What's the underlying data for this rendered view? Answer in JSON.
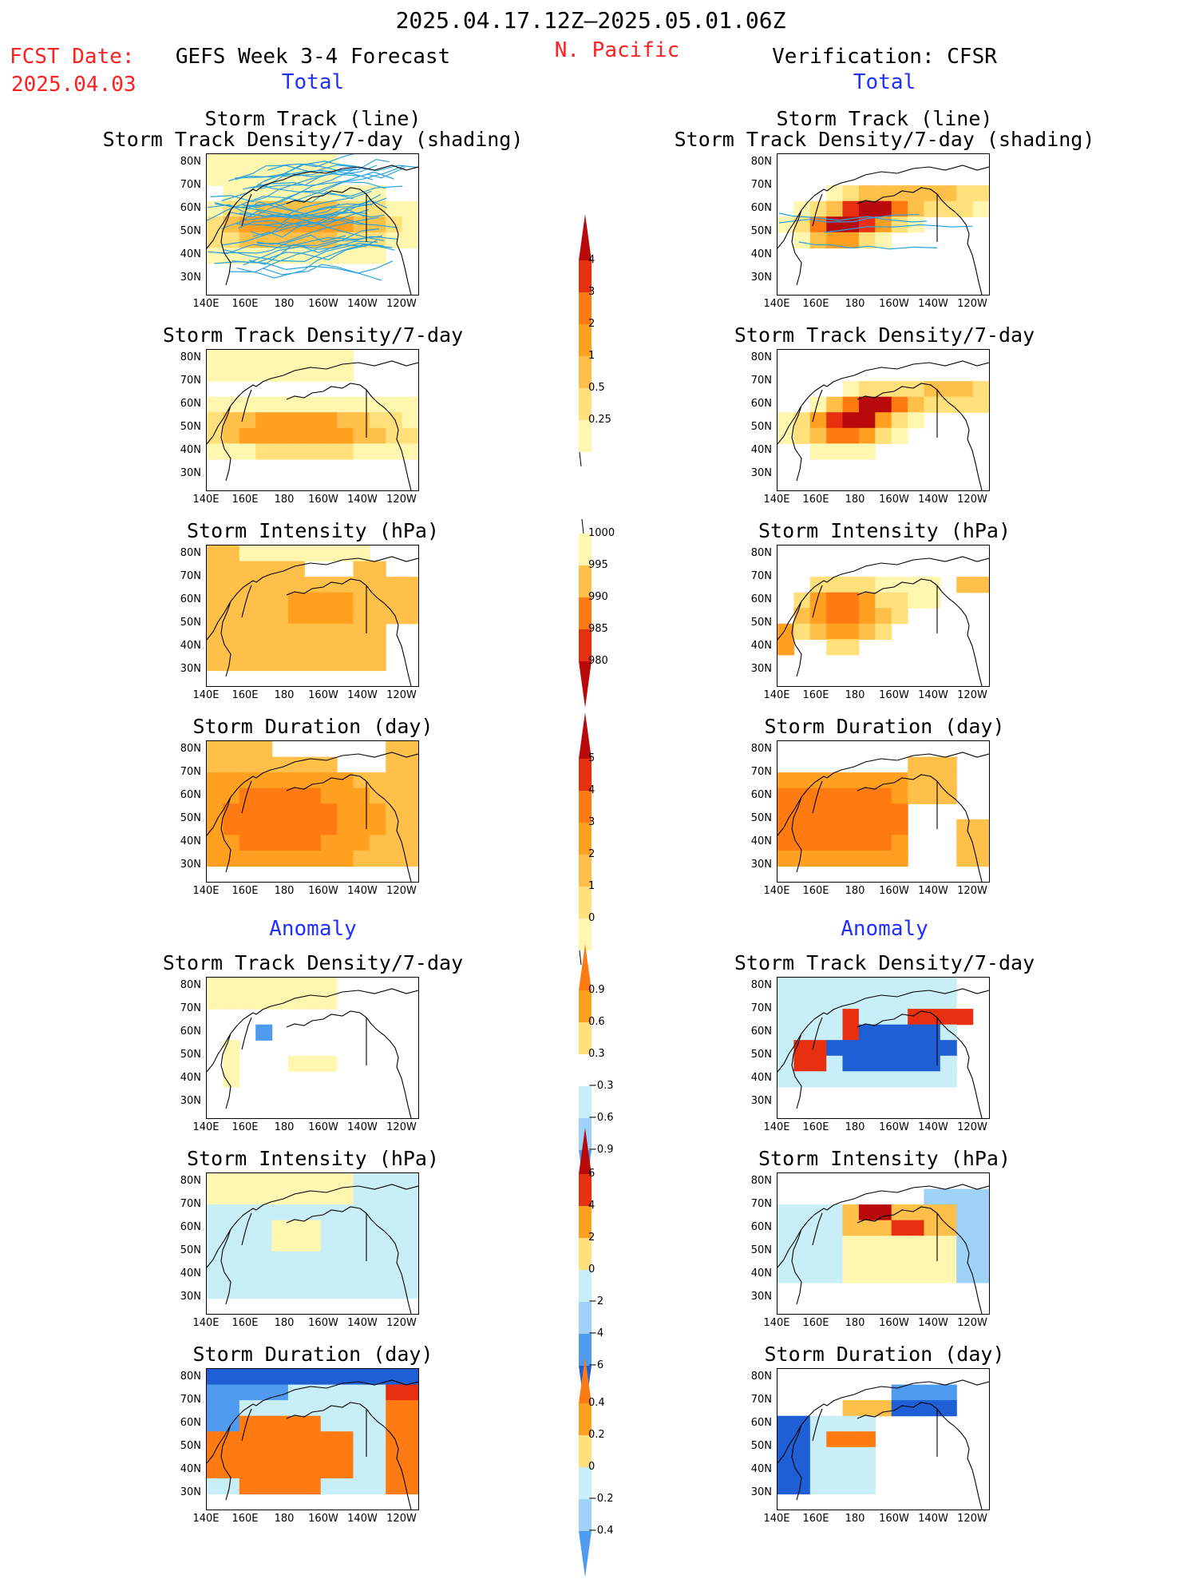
{
  "header": {
    "period": "2025.04.17.12Z–2025.05.01.06Z",
    "region": "N. Pacific",
    "fcst_date_label": "FCST Date:",
    "fcst_date_value": "2025.04.03",
    "left_title": "GEFS Week 3-4 Forecast",
    "right_title": "Verification: CFSR",
    "total_label": "Total",
    "anomaly_label": "Anomaly"
  },
  "axes": {
    "lat_ticks": [
      "80N",
      "70N",
      "60N",
      "50N",
      "40N",
      "30N"
    ],
    "lon_ticks": [
      "140E",
      "160E",
      "180",
      "160W",
      "140W",
      "120W"
    ]
  },
  "panel_titles": {
    "track_line": "Storm Track (line)",
    "track_shading": "Storm Track Density/7-day (shading)",
    "density": "Storm Track Density/7-day",
    "intensity": "Storm Intensity (hPa)",
    "duration": "Storm Duration (day)"
  },
  "colorbars": {
    "density_total": [
      "4",
      "3",
      "2",
      "1",
      "0.5",
      "0.25"
    ],
    "intensity_total": [
      "1000",
      "995",
      "990",
      "985",
      "980"
    ],
    "duration_total": [
      "5",
      "4",
      "3",
      "2",
      "1",
      "0"
    ],
    "density_anom": [
      "0.9",
      "0.6",
      "0.3",
      "−0.3",
      "−0.6",
      "−0.9"
    ],
    "intensity_anom": [
      "6",
      "4",
      "2",
      "0",
      "−2",
      "−4",
      "−6"
    ],
    "duration_anom": [
      "0.4",
      "0.2",
      "0",
      "−0.2",
      "−0.4"
    ]
  },
  "colors": {
    "y1": "#fff6b0",
    "y2": "#ffe07a",
    "o1": "#ffc04a",
    "o2": "#ffa020",
    "o3": "#ff7a10",
    "r1": "#e83010",
    "r2": "#b80a0a",
    "b1": "#c8eef8",
    "b2": "#9ed2f6",
    "b3": "#4f9bef",
    "b4": "#1f5fd6",
    "track": "#29a3e0"
  },
  "chart_data": [
    {
      "id": "fcst-track",
      "type": "heatmap",
      "field": "Storm Track Density/7-day with storm track lines",
      "intensity": "moderate",
      "pattern": "track_total"
    },
    {
      "id": "cfsr-track",
      "type": "heatmap",
      "field": "Storm Track Density/7-day with storm track lines",
      "intensity": "strong",
      "pattern": "track_obs"
    },
    {
      "id": "fcst-density",
      "type": "heatmap",
      "field": "Storm Track Density/7-day",
      "pattern": "density_fcst"
    },
    {
      "id": "cfsr-density",
      "type": "heatmap",
      "field": "Storm Track Density/7-day",
      "pattern": "density_obs"
    },
    {
      "id": "fcst-intensity",
      "type": "heatmap",
      "field": "Storm Intensity (hPa)",
      "pattern": "intensity_fcst"
    },
    {
      "id": "cfsr-intensity",
      "type": "heatmap",
      "field": "Storm Intensity (hPa)",
      "pattern": "intensity_obs"
    },
    {
      "id": "fcst-duration",
      "type": "heatmap",
      "field": "Storm Duration (day)",
      "pattern": "duration_fcst"
    },
    {
      "id": "cfsr-duration",
      "type": "heatmap",
      "field": "Storm Duration (day)",
      "pattern": "duration_obs"
    },
    {
      "id": "fcst-density-anom",
      "type": "heatmap",
      "field": "Storm Track Density/7-day anomaly",
      "pattern": "danom_fcst"
    },
    {
      "id": "cfsr-density-anom",
      "type": "heatmap",
      "field": "Storm Track Density/7-day anomaly",
      "pattern": "danom_obs"
    },
    {
      "id": "fcst-intensity-anom",
      "type": "heatmap",
      "field": "Storm Intensity anomaly (hPa)",
      "pattern": "ianom_fcst"
    },
    {
      "id": "cfsr-intensity-anom",
      "type": "heatmap",
      "field": "Storm Intensity anomaly (hPa)",
      "pattern": "ianom_obs"
    },
    {
      "id": "fcst-duration-anom",
      "type": "heatmap",
      "field": "Storm Duration anomaly (day)",
      "pattern": "duanom_fcst"
    },
    {
      "id": "cfsr-duration-anom",
      "type": "heatmap",
      "field": "Storm Duration anomaly (day)",
      "pattern": "duanom_obs"
    }
  ]
}
